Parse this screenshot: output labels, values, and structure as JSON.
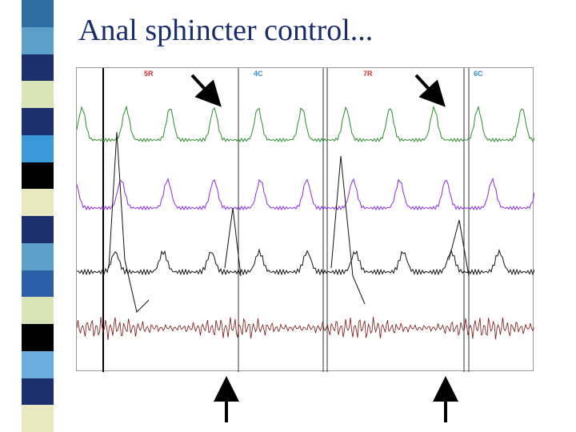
{
  "slide": {
    "title": "Anal sphincter control..."
  },
  "channels": [
    {
      "label": "5R",
      "color": "#d03030"
    },
    {
      "label": "4C",
      "color": "#2f8fd8"
    },
    {
      "label": "7R",
      "color": "#d03030"
    },
    {
      "label": "6C",
      "color": "#2f8fd8"
    }
  ],
  "trace_colors": [
    "#2e8b2e",
    "#8a2be2",
    "#111111",
    "#7a1010"
  ],
  "stripe_colors": [
    "#2e6da4",
    "#5aa0c8",
    "#1a2f6b",
    "#d8e4b8",
    "#1a2f6b",
    "#3a9ad9",
    "#000000",
    "#e8e8c0",
    "#1a2f6b",
    "#5aa0c8",
    "#2a5fa8",
    "#d8e4b8",
    "#000000",
    "#6aaee0",
    "#1a2f6b",
    "#e8e8c0"
  ]
}
